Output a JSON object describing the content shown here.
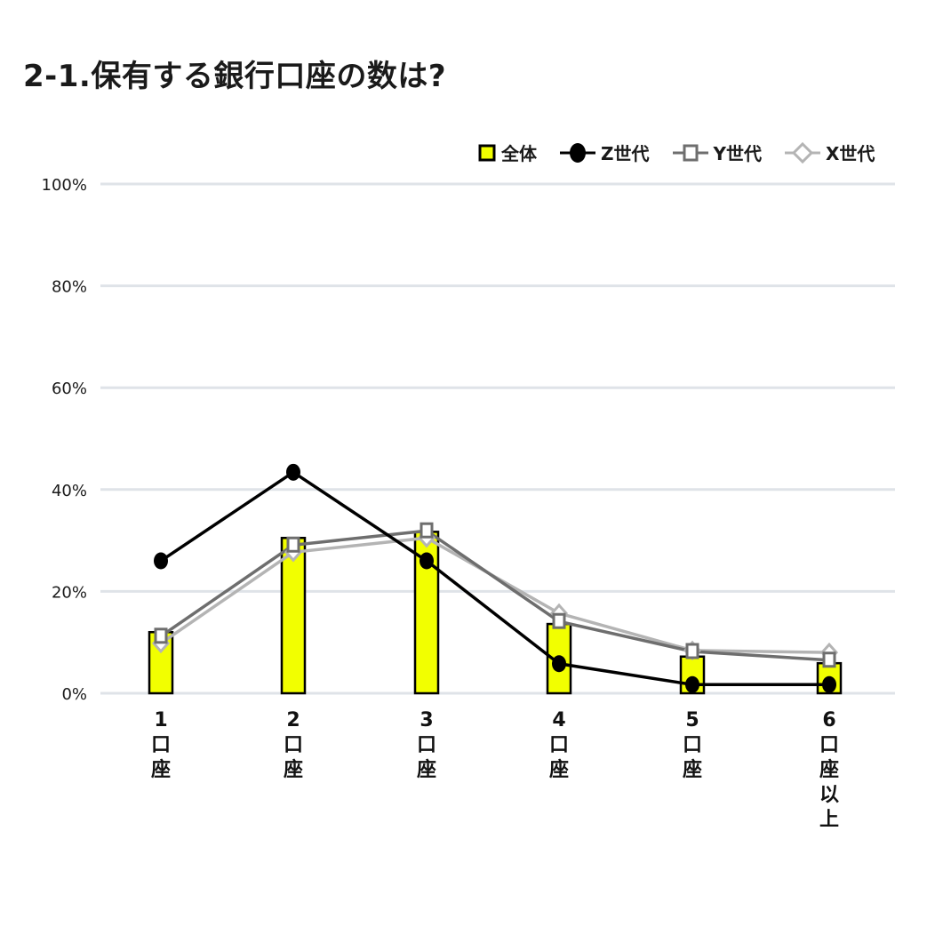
{
  "title": "2-1.保有する銀行口座の数は?",
  "legend": [
    {
      "label": "全体",
      "marker": "bar",
      "color": "#f2ff00"
    },
    {
      "label": "Z世代",
      "marker": "circle",
      "color": "#000000"
    },
    {
      "label": "Y世代",
      "marker": "square",
      "color": "#6e6e6e"
    },
    {
      "label": "X世代",
      "marker": "diamond",
      "color": "#b4b4b4"
    }
  ],
  "y_axis": {
    "ticks": [
      "0%",
      "20%",
      "40%",
      "60%",
      "80%",
      "100%"
    ]
  },
  "x_axis": {
    "categories": [
      [
        "1",
        "口",
        "座"
      ],
      [
        "2",
        "口",
        "座"
      ],
      [
        "3",
        "口",
        "座"
      ],
      [
        "4",
        "口",
        "座"
      ],
      [
        "5",
        "口",
        "座"
      ],
      [
        "6",
        "口",
        "座",
        "以",
        "上"
      ]
    ]
  },
  "chart_data": {
    "type": "bar",
    "title": "2-1.保有する銀行口座の数は?",
    "categories": [
      "1口座",
      "2口座",
      "3口座",
      "4口座",
      "5口座",
      "6口座以上"
    ],
    "series": [
      {
        "name": "全体",
        "type": "bar",
        "color": "#f2ff00",
        "values": [
          12.0,
          30.5,
          31.7,
          13.6,
          7.2,
          5.9
        ]
      },
      {
        "name": "Z世代",
        "type": "line",
        "marker": "circle",
        "color": "#000000",
        "values": [
          26.0,
          43.4,
          26.0,
          5.8,
          1.7,
          1.7
        ]
      },
      {
        "name": "Y世代",
        "type": "line",
        "marker": "square",
        "color": "#6e6e6e",
        "values": [
          11.2,
          29.1,
          31.9,
          14.1,
          8.2,
          6.5
        ]
      },
      {
        "name": "X世代",
        "type": "line",
        "marker": "diamond",
        "color": "#b4b4b4",
        "values": [
          9.8,
          27.7,
          30.5,
          15.7,
          8.4,
          8.0
        ]
      }
    ],
    "xlabel": "",
    "ylabel": "",
    "ylim": [
      0,
      100
    ],
    "yticks": [
      "0%",
      "20%",
      "40%",
      "60%",
      "80%",
      "100%"
    ],
    "grid": true,
    "legend_position": "top-right"
  }
}
